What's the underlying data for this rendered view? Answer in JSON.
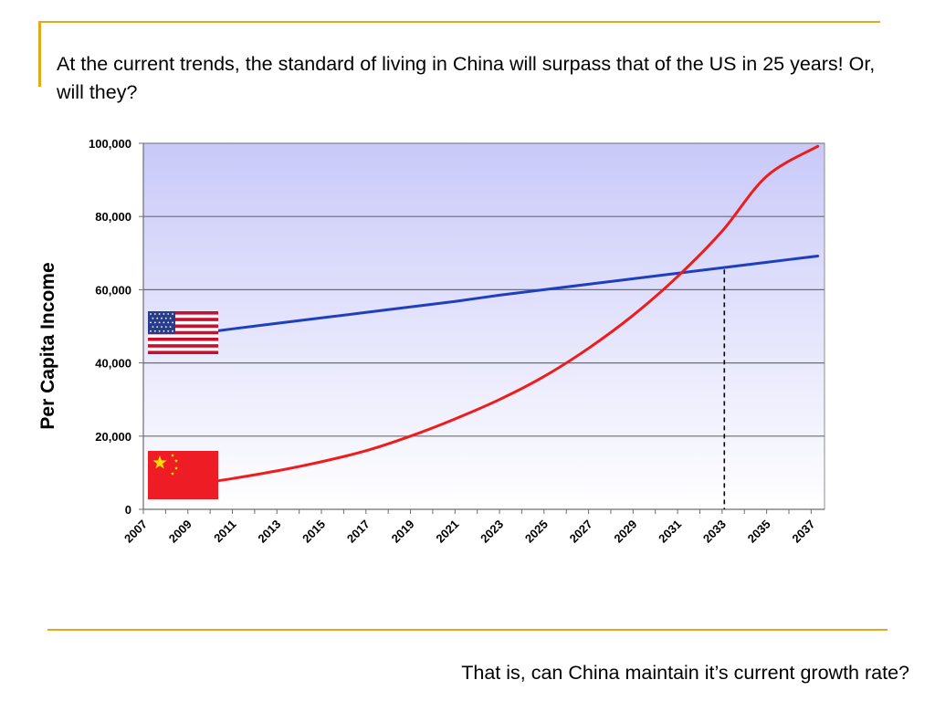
{
  "slide": {
    "headline": "At the current trends, the standard of living in China will surpass that of the US in 25 years! Or, will they?",
    "footer_question": "That is, can China maintain it’s current growth rate?",
    "accent_color": "#e6a719"
  },
  "chart_data": {
    "type": "line",
    "title": "",
    "xlabel": "",
    "ylabel": "Per Capita Income",
    "xlim": [
      2007,
      2037.6
    ],
    "ylim": [
      0,
      100000
    ],
    "yticks": [
      0,
      20000,
      40000,
      60000,
      80000,
      100000
    ],
    "ytick_labels": [
      "0",
      "20,000",
      "40,000",
      "60,000",
      "80,000",
      "100,000"
    ],
    "xticks": [
      2007,
      2009,
      2011,
      2013,
      2015,
      2017,
      2019,
      2021,
      2023,
      2025,
      2027,
      2029,
      2031,
      2033,
      2035,
      2037
    ],
    "xtick_labels": [
      "2007",
      "2009",
      "2011",
      "2013",
      "2015",
      "2017",
      "2019",
      "2021",
      "2023",
      "2025",
      "2027",
      "2029",
      "2031",
      "2033",
      "2035",
      "2037"
    ],
    "grid": true,
    "crossover_marker": {
      "x": 2033.1,
      "y": 65500,
      "style": "dashed"
    },
    "series": [
      {
        "legend_icon": "us-flag-icon",
        "color": "#1f3fbf",
        "x": [
          2010,
          2011,
          2013,
          2015,
          2017,
          2019,
          2021,
          2023,
          2025,
          2027,
          2029,
          2031,
          2033,
          2035,
          2037.3
        ],
        "values": [
          48500,
          49300,
          50800,
          52300,
          53800,
          55300,
          56800,
          58500,
          60000,
          61500,
          63000,
          64500,
          66000,
          67500,
          69200
        ]
      },
      {
        "legend_icon": "china-flag-icon",
        "color": "#ee1c1c",
        "x": [
          2010,
          2011,
          2013,
          2015,
          2017,
          2019,
          2021,
          2023,
          2025,
          2027,
          2029,
          2031,
          2033,
          2035,
          2037.3
        ],
        "values": [
          7500,
          8400,
          10500,
          13000,
          16000,
          20000,
          24700,
          30000,
          36300,
          44000,
          53000,
          63600,
          76000,
          91000,
          99200
        ]
      }
    ]
  }
}
